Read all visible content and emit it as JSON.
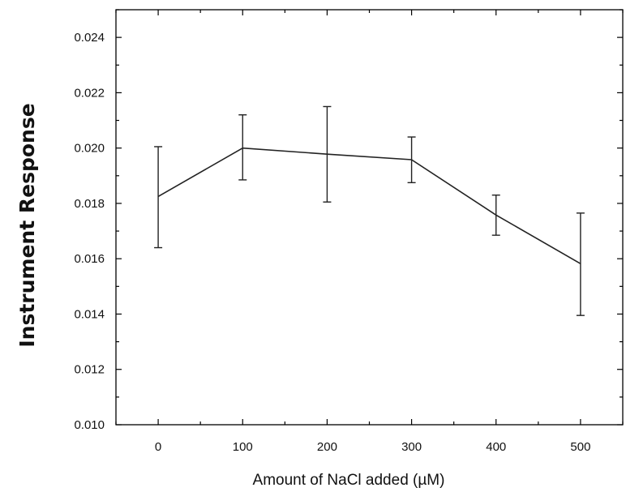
{
  "chart_data": {
    "type": "line",
    "title": "",
    "xlabel": "Amount of NaCl added (µM)",
    "ylabel": "Instrument Response",
    "x": [
      0,
      100,
      200,
      300,
      400,
      500
    ],
    "series": [
      {
        "values": [
          0.01825,
          0.02,
          0.01978,
          0.01958,
          0.01758,
          0.01582
        ],
        "error_low": [
          0.0164,
          0.01885,
          0.01805,
          0.01875,
          0.01685,
          0.01395
        ],
        "error_high": [
          0.02005,
          0.0212,
          0.0215,
          0.0204,
          0.0183,
          0.01765
        ]
      }
    ],
    "xlim": [
      -50,
      550
    ],
    "ylim": [
      0.01,
      0.025
    ],
    "xticks": [
      "0",
      "100",
      "200",
      "300",
      "400",
      "500"
    ],
    "yticks": [
      "0.010",
      "0.012",
      "0.014",
      "0.016",
      "0.018",
      "0.020",
      "0.022",
      "0.024"
    ],
    "grid": false,
    "legend": "none",
    "line_color": "#222222"
  }
}
